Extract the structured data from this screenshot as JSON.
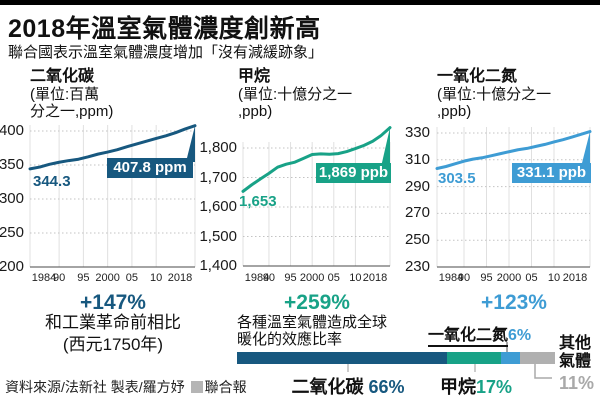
{
  "page": {
    "title": "2018年溫室氣體濃度創新高",
    "subtitle": "聯合國表示溫室氣體濃度增加「沒有減緩跡象」"
  },
  "note": {
    "line1": "和工業革命前相比",
    "line2": "(西元1750年)"
  },
  "footer": {
    "source": "資料來源/法新社 製表/羅方妤",
    "brand": "聯合報"
  },
  "chart_data": [
    {
      "type": "line",
      "title": "二氧化碳",
      "unit_line1": "(單位:百萬",
      "unit_line2": "分之一,ppm)",
      "color": "#17587F",
      "xlim": [
        1984,
        2018
      ],
      "xticks": {
        "tick_years": [
          1984,
          1990,
          1995,
          2000,
          2005,
          2010,
          2018
        ],
        "tick_labels": [
          "1984",
          "90",
          "95",
          "2000",
          "05",
          "10",
          "2018"
        ]
      },
      "yticks": [
        400,
        350,
        300,
        250,
        200
      ],
      "ytick_labels": [
        "400",
        "350",
        "300",
        "250",
        "200"
      ],
      "ylim": [
        200,
        410
      ],
      "x": [
        1984,
        1986,
        1988,
        1990,
        1992,
        1994,
        1996,
        1998,
        2000,
        2002,
        2004,
        2006,
        2008,
        2010,
        2012,
        2014,
        2016,
        2018
      ],
      "values": [
        344.3,
        347,
        351,
        354,
        356.5,
        358.5,
        362,
        366,
        369,
        372.5,
        377,
        381,
        385,
        389,
        393,
        397.5,
        403,
        407.8
      ],
      "start_label": "344.3",
      "end_label": "407.8 ppm",
      "change_label": "+147%"
    },
    {
      "type": "line",
      "title": "甲烷",
      "unit_line1": "(單位:十億分之一",
      "unit_line2": ",ppb)",
      "color": "#18A287",
      "xlim": [
        1984,
        2018
      ],
      "xticks": {
        "tick_years": [
          1984,
          1990,
          1995,
          2000,
          2005,
          2010,
          2018
        ],
        "tick_labels": [
          "1984",
          "90",
          "95",
          "2000",
          "05",
          "10",
          "2018"
        ]
      },
      "yticks": [
        1800,
        1700,
        1600,
        1500,
        1400
      ],
      "ytick_labels": [
        "1,800",
        "1,700",
        "1,600",
        "1,500",
        "1,400"
      ],
      "ylim": [
        1400,
        1880
      ],
      "x": [
        1984,
        1986,
        1988,
        1990,
        1992,
        1994,
        1996,
        1998,
        2000,
        2002,
        2004,
        2006,
        2008,
        2010,
        2012,
        2014,
        2016,
        2018
      ],
      "values": [
        1653,
        1675,
        1695,
        1714,
        1735,
        1745,
        1752,
        1765,
        1778,
        1780,
        1779,
        1781,
        1788,
        1798,
        1809,
        1823,
        1843,
        1869
      ],
      "start_label": "1,653",
      "end_label": "1,869 ppb",
      "change_label": "+259%"
    },
    {
      "type": "line",
      "title": "一氧化二氮",
      "unit_line1": "(單位:十億分之一",
      "unit_line2": ",ppb)",
      "color": "#3E9CD4",
      "xlim": [
        1984,
        2018
      ],
      "xticks": {
        "tick_years": [
          1984,
          1990,
          1995,
          2000,
          2005,
          2010,
          2018
        ],
        "tick_labels": [
          "1984",
          "90",
          "95",
          "2000",
          "05",
          "10",
          "2018"
        ]
      },
      "yticks": [
        330,
        310,
        290,
        270,
        250,
        230
      ],
      "ytick_labels": [
        "330",
        "310",
        "290",
        "270",
        "250",
        "230"
      ],
      "ylim": [
        230,
        335
      ],
      "x": [
        1984,
        1986,
        1988,
        1990,
        1992,
        1994,
        1996,
        1998,
        2000,
        2002,
        2004,
        2006,
        2008,
        2010,
        2012,
        2014,
        2016,
        2018
      ],
      "values": [
        303.5,
        305,
        307,
        309,
        310.5,
        311.5,
        313,
        314.5,
        316,
        317.5,
        318.5,
        320,
        321.5,
        323.3,
        325,
        327,
        329,
        331.1
      ],
      "start_label": "303.5",
      "end_label": "331.1 ppb",
      "change_label": "+123%"
    },
    {
      "type": "bar",
      "title": "各種溫室氣體造成全球暖化的效應比率",
      "title_line1": "各種溫室氣體造成全球",
      "title_line2": "暖化的效應比率",
      "segments": [
        {
          "label": "二氧化碳",
          "value": 66,
          "value_label": "66%",
          "color": "#17587F"
        },
        {
          "label": "甲烷",
          "value": 17,
          "value_label": "17%",
          "color": "#18A287"
        },
        {
          "label": "一氧化二氮",
          "value": 6,
          "value_label": "6%",
          "color": "#3E9CD4"
        },
        {
          "label": "其他氣體",
          "label_line1": "其他",
          "label_line2": "氣體",
          "value": 11,
          "value_label": "11%",
          "color": "#B0B0B0"
        }
      ]
    }
  ]
}
